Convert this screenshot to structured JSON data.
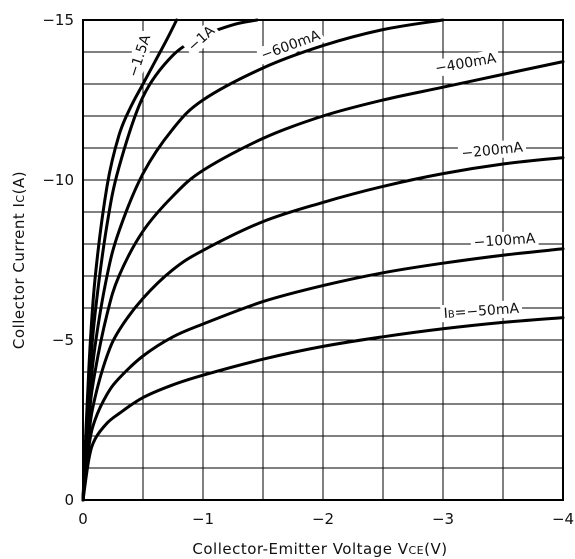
{
  "chart_data": {
    "type": "line",
    "title": "",
    "xlabel": "Collector-Emitter Voltage VCE(V)",
    "xlabel_parts": {
      "main": "Collector-Emitter Voltage V",
      "sub": "CE",
      "unit": "(V)"
    },
    "ylabel": "Collector Current IC(A)",
    "ylabel_parts": {
      "main": "Collector Current I",
      "sub": "C",
      "unit": "(A)"
    },
    "xlim": [
      0,
      -4
    ],
    "ylim": [
      0,
      -15
    ],
    "x_ticks": [
      "0",
      "−1",
      "−2",
      "−3",
      "−4"
    ],
    "y_ticks": [
      "0",
      "−5",
      "−10",
      "−15"
    ],
    "grid": true,
    "series": [
      {
        "label": "IB=−50mA",
        "label_parts": {
          "main": "I",
          "sub": "B",
          "rest": "=−50mA"
        },
        "x": [
          0,
          -0.05,
          -0.1,
          -0.2,
          -0.3,
          -0.5,
          -0.75,
          -1.0,
          -1.5,
          -2.0,
          -2.5,
          -3.0,
          -3.5,
          -4.0
        ],
        "y": [
          0,
          -1.3,
          -1.9,
          -2.4,
          -2.7,
          -3.2,
          -3.6,
          -3.9,
          -4.4,
          -4.8,
          -5.1,
          -5.35,
          -5.55,
          -5.7
        ]
      },
      {
        "label": "−100mA",
        "x": [
          0,
          -0.05,
          -0.1,
          -0.2,
          -0.3,
          -0.5,
          -0.75,
          -1.0,
          -1.5,
          -2.0,
          -2.5,
          -3.0,
          -3.5,
          -4.0
        ],
        "y": [
          0,
          -1.7,
          -2.5,
          -3.3,
          -3.8,
          -4.5,
          -5.1,
          -5.5,
          -6.2,
          -6.7,
          -7.1,
          -7.4,
          -7.65,
          -7.85
        ]
      },
      {
        "label": "−200mA",
        "x": [
          0,
          -0.05,
          -0.1,
          -0.2,
          -0.3,
          -0.5,
          -0.75,
          -1.0,
          -1.5,
          -2.0,
          -2.5,
          -3.0,
          -3.5,
          -4.0
        ],
        "y": [
          0,
          -2.1,
          -3.2,
          -4.5,
          -5.3,
          -6.3,
          -7.2,
          -7.8,
          -8.7,
          -9.3,
          -9.8,
          -10.2,
          -10.5,
          -10.7
        ]
      },
      {
        "label": "−400mA",
        "x": [
          0,
          -0.05,
          -0.1,
          -0.2,
          -0.3,
          -0.5,
          -0.75,
          -1.0,
          -1.5,
          -2.0,
          -2.5,
          -3.0,
          -3.5,
          -4.0
        ],
        "y": [
          0,
          -2.6,
          -4.0,
          -5.8,
          -7.0,
          -8.4,
          -9.5,
          -10.3,
          -11.3,
          -12.0,
          -12.5,
          -12.9,
          -13.3,
          -13.7
        ]
      },
      {
        "label": "−600mA",
        "x": [
          0,
          -0.05,
          -0.1,
          -0.2,
          -0.3,
          -0.5,
          -0.75,
          -1.0,
          -1.5,
          -2.0,
          -2.5,
          -3.0
        ],
        "y": [
          0,
          -3.0,
          -4.8,
          -7.0,
          -8.4,
          -10.2,
          -11.6,
          -12.5,
          -13.5,
          -14.2,
          -14.7,
          -15.0
        ]
      },
      {
        "label": "−1A",
        "x": [
          0,
          -0.05,
          -0.1,
          -0.2,
          -0.3,
          -0.5,
          -0.75,
          -1.0,
          -1.25,
          -1.45
        ],
        "y": [
          0,
          -3.6,
          -5.8,
          -8.6,
          -10.4,
          -12.6,
          -13.9,
          -14.5,
          -14.85,
          -15.0
        ]
      },
      {
        "label": "−1.5A",
        "x": [
          0,
          -0.05,
          -0.1,
          -0.2,
          -0.3,
          -0.4,
          -0.5,
          -0.6,
          -0.7,
          -0.78
        ],
        "y": [
          0,
          -4.2,
          -6.9,
          -9.8,
          -11.4,
          -12.3,
          -13.0,
          -13.7,
          -14.4,
          -15.0
        ]
      }
    ]
  }
}
